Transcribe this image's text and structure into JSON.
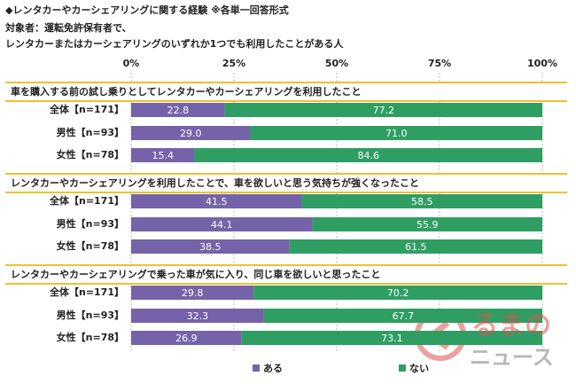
{
  "chart_data": {
    "type": "bar",
    "orientation": "horizontal",
    "stacked": true,
    "title": "◆レンタカーやカーシェアリングに関する経験 ※各単一回答形式",
    "subtitle": [
      "対象者：運転免許保有者で、",
      "レンタカーまたはカーシェアリングのいずれか1つでも利用したことがある人"
    ],
    "xlim": [
      0,
      100
    ],
    "xticks": [
      {
        "value": 0,
        "label": "0%"
      },
      {
        "value": 25,
        "label": "25%"
      },
      {
        "value": 50,
        "label": "50%"
      },
      {
        "value": 75,
        "label": "75%"
      },
      {
        "value": 100,
        "label": "100%"
      }
    ],
    "grid": true,
    "legend": "bottom",
    "series": [
      {
        "name": "ある",
        "color": "#7463a8"
      },
      {
        "name": "ない",
        "color": "#2f9e63"
      }
    ],
    "groups": [
      {
        "title": "車を購入する前の試し乗りとしてレンタカーやカーシェアリングを利用したこと",
        "categories": [
          "全体【n=171】",
          "男性【n=93】",
          "女性【n=78】"
        ],
        "series": [
          {
            "values": [
              22.8,
              29.0,
              15.4
            ],
            "value_labels": [
              "22.8",
              "29.0",
              "15.4"
            ]
          },
          {
            "values": [
              77.2,
              71.0,
              84.6
            ],
            "value_labels": [
              "77.2",
              "71.0",
              "84.6"
            ]
          }
        ]
      },
      {
        "title": "レンタカーやカーシェアリングを利用したことで、車を欲しいと思う気持ちが強くなったこと",
        "categories": [
          "全体【n=171】",
          "男性【n=93】",
          "女性【n=78】"
        ],
        "series": [
          {
            "values": [
              41.5,
              44.1,
              38.5
            ],
            "value_labels": [
              "41.5",
              "44.1",
              "38.5"
            ]
          },
          {
            "values": [
              58.5,
              55.9,
              61.5
            ],
            "value_labels": [
              "58.5",
              "55.9",
              "61.5"
            ]
          }
        ]
      },
      {
        "title": "レンタカーやカーシェアリングで乗った車が気に入り、同じ車を欲しいと思ったこと",
        "categories": [
          "全体【n=171】",
          "男性【n=93】",
          "女性【n=78】"
        ],
        "series": [
          {
            "values": [
              29.8,
              32.3,
              26.9
            ],
            "value_labels": [
              "29.8",
              "32.3",
              "26.9"
            ]
          },
          {
            "values": [
              70.2,
              67.7,
              73.1
            ],
            "value_labels": [
              "70.2",
              "67.7",
              "73.1"
            ]
          }
        ]
      }
    ],
    "watermark": [
      "るまの",
      "ニュース"
    ]
  }
}
